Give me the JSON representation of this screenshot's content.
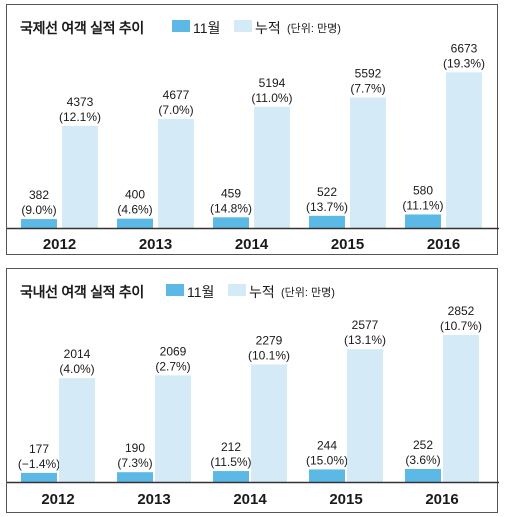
{
  "colors": {
    "nov": "#5cb8e4",
    "cum": "#d4ebf7",
    "axis": "#333333",
    "text": "#1a1a1a"
  },
  "legend": {
    "nov_label": "11월",
    "cum_label": "누적",
    "unit_label": "(단위: 만명)"
  },
  "chart_data": [
    {
      "type": "bar",
      "title": "국제선 여객 실적 추이",
      "categories": [
        "2012",
        "2013",
        "2014",
        "2015",
        "2016"
      ],
      "series": [
        {
          "name": "11월",
          "values": [
            382,
            400,
            459,
            522,
            580
          ],
          "labels": [
            "(9.0%)",
            "(4.6%)",
            "(14.8%)",
            "(13.7%)",
            "(11.1%)"
          ]
        },
        {
          "name": "누적",
          "values": [
            4373,
            4677,
            5194,
            5592,
            6673
          ],
          "labels": [
            "(12.1%)",
            "(7.0%)",
            "(11.0%)",
            "(7.7%)",
            "(19.3%)"
          ]
        }
      ],
      "ylim": [
        0,
        7500
      ]
    },
    {
      "type": "bar",
      "title": "국내선 여객 실적 추이",
      "categories": [
        "2012",
        "2013",
        "2014",
        "2015",
        "2016"
      ],
      "series": [
        {
          "name": "11월",
          "values": [
            177,
            190,
            212,
            244,
            252
          ],
          "labels": [
            "(−1.4%)",
            "(7.3%)",
            "(11.5%)",
            "(15.0%)",
            "(3.6%)"
          ]
        },
        {
          "name": "누적",
          "values": [
            2014,
            2069,
            2279,
            2577,
            2852
          ],
          "labels": [
            "(4.0%)",
            "(2.7%)",
            "(10.1%)",
            "(13.1%)",
            "(10.7%)"
          ]
        }
      ],
      "ylim": [
        0,
        3200
      ]
    }
  ]
}
